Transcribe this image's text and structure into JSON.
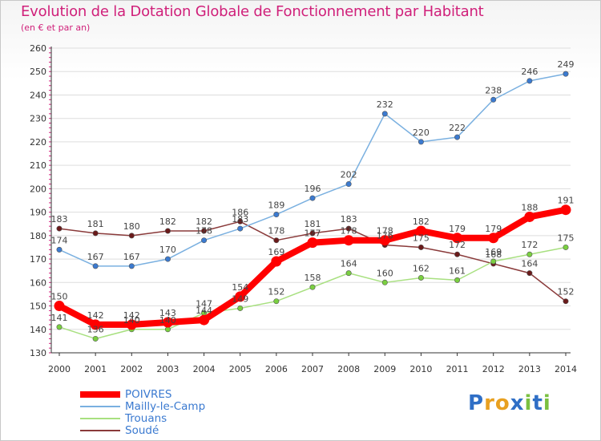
{
  "title": "Evolution de la Dotation Globale de Fonctionnement par Habitant",
  "subtitle": "(en € et par an)",
  "logo_text": "Proxiti",
  "colors": {
    "title": "#d0207a",
    "legend_text": "#3b7ad0",
    "axis": "#333333",
    "grid": "#dddddd",
    "tick_red": "#d0207a"
  },
  "chart_data": {
    "type": "line",
    "title": "Evolution de la Dotation Globale de Fonctionnement par Habitant",
    "subtitle": "(en € et par an)",
    "xlabel": "",
    "ylabel": "",
    "x": [
      2000,
      2001,
      2002,
      2003,
      2004,
      2005,
      2006,
      2007,
      2008,
      2009,
      2010,
      2011,
      2012,
      2013,
      2014
    ],
    "ylim": [
      130,
      260
    ],
    "yticks": [
      130,
      140,
      150,
      160,
      170,
      180,
      190,
      200,
      210,
      220,
      230,
      240,
      250,
      260
    ],
    "grid": "horizontal",
    "legend_position": "bottom-left",
    "series": [
      {
        "name": "POIVRES",
        "color": "#ff0000",
        "marker_color": "#ff0000",
        "values": [
          150,
          142,
          142,
          143,
          144,
          154,
          169,
          177,
          178,
          178,
          182,
          179,
          179,
          188,
          191
        ],
        "labels": [
          "150",
          "142",
          "142",
          "143",
          "144",
          "154",
          "169",
          "177",
          "178",
          "178",
          "182",
          "179",
          "179",
          "188",
          "191"
        ]
      },
      {
        "name": "Mailly-le-Camp",
        "color": "#7ab0e0",
        "marker_color": "#3b7ad0",
        "values": [
          174,
          167,
          167,
          170,
          178,
          183,
          189,
          196,
          202,
          232,
          220,
          222,
          238,
          246,
          249
        ],
        "labels": [
          "174",
          "167",
          "167",
          "170",
          "178",
          "183",
          "189",
          "196",
          "202",
          "232",
          "220",
          "222",
          "238",
          "246",
          "249"
        ]
      },
      {
        "name": "Trouans",
        "color": "#a8e080",
        "marker_color": "#7ad040",
        "values": [
          141,
          136,
          140,
          140,
          147,
          149,
          152,
          158,
          164,
          160,
          162,
          161,
          169,
          172,
          175
        ],
        "labels": [
          "141",
          "136",
          "140",
          "140",
          "147",
          "149",
          "152",
          "158",
          "164",
          "160",
          "162",
          "161",
          "169",
          "172",
          "175"
        ]
      },
      {
        "name": "Soudé",
        "color": "#8a3a3a",
        "marker_color": "#6a1a1a",
        "values": [
          183,
          181,
          180,
          182,
          182,
          186,
          178,
          181,
          183,
          176,
          175,
          172,
          168,
          164,
          152
        ],
        "labels": [
          "183",
          "181",
          "180",
          "182",
          "182",
          "186",
          "178",
          "181",
          "183",
          "176",
          "175",
          "172",
          "168",
          "164",
          "152"
        ]
      }
    ]
  }
}
